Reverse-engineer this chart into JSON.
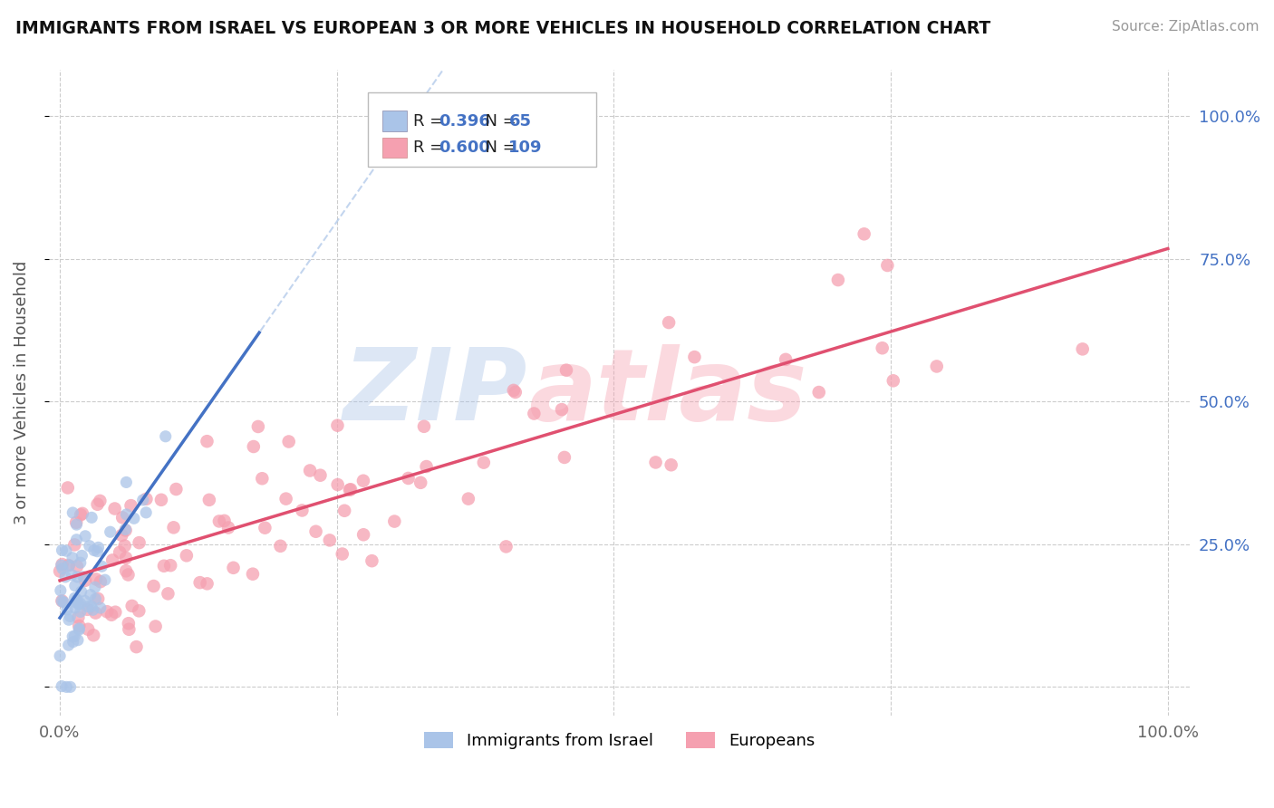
{
  "title": "IMMIGRANTS FROM ISRAEL VS EUROPEAN 3 OR MORE VEHICLES IN HOUSEHOLD CORRELATION CHART",
  "source": "Source: ZipAtlas.com",
  "ylabel": "3 or more Vehicles in Household",
  "legend_label_1": "Immigrants from Israel",
  "legend_label_2": "Europeans",
  "R1": 0.396,
  "N1": 65,
  "R2": 0.6,
  "N2": 109,
  "color1": "#aac4e8",
  "color2": "#f5a0b0",
  "trendline1_color": "#4472c4",
  "trendline2_color": "#e05070",
  "dashed_color": "#aac4e8",
  "background_color": "#ffffff",
  "grid_color": "#cccccc",
  "watermark_zip_color": "#aac4e8",
  "watermark_atlas_color": "#f5a0b0",
  "right_axis_color": "#4472c4"
}
